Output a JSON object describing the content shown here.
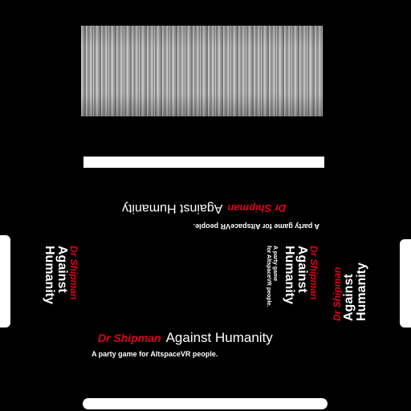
{
  "branding": {
    "name_red": "Dr Shipman",
    "name_white": "Against Humanity",
    "name_white_line1": "Against",
    "name_white_line2": "Humanity",
    "tagline": "A party game for AltspaceVR people.",
    "tagline_line1": "A party game",
    "tagline_line2": "for AltspaceVR people."
  },
  "colors": {
    "background": "#000000",
    "accent_red": "#e3001b",
    "text_white": "#ffffff"
  }
}
